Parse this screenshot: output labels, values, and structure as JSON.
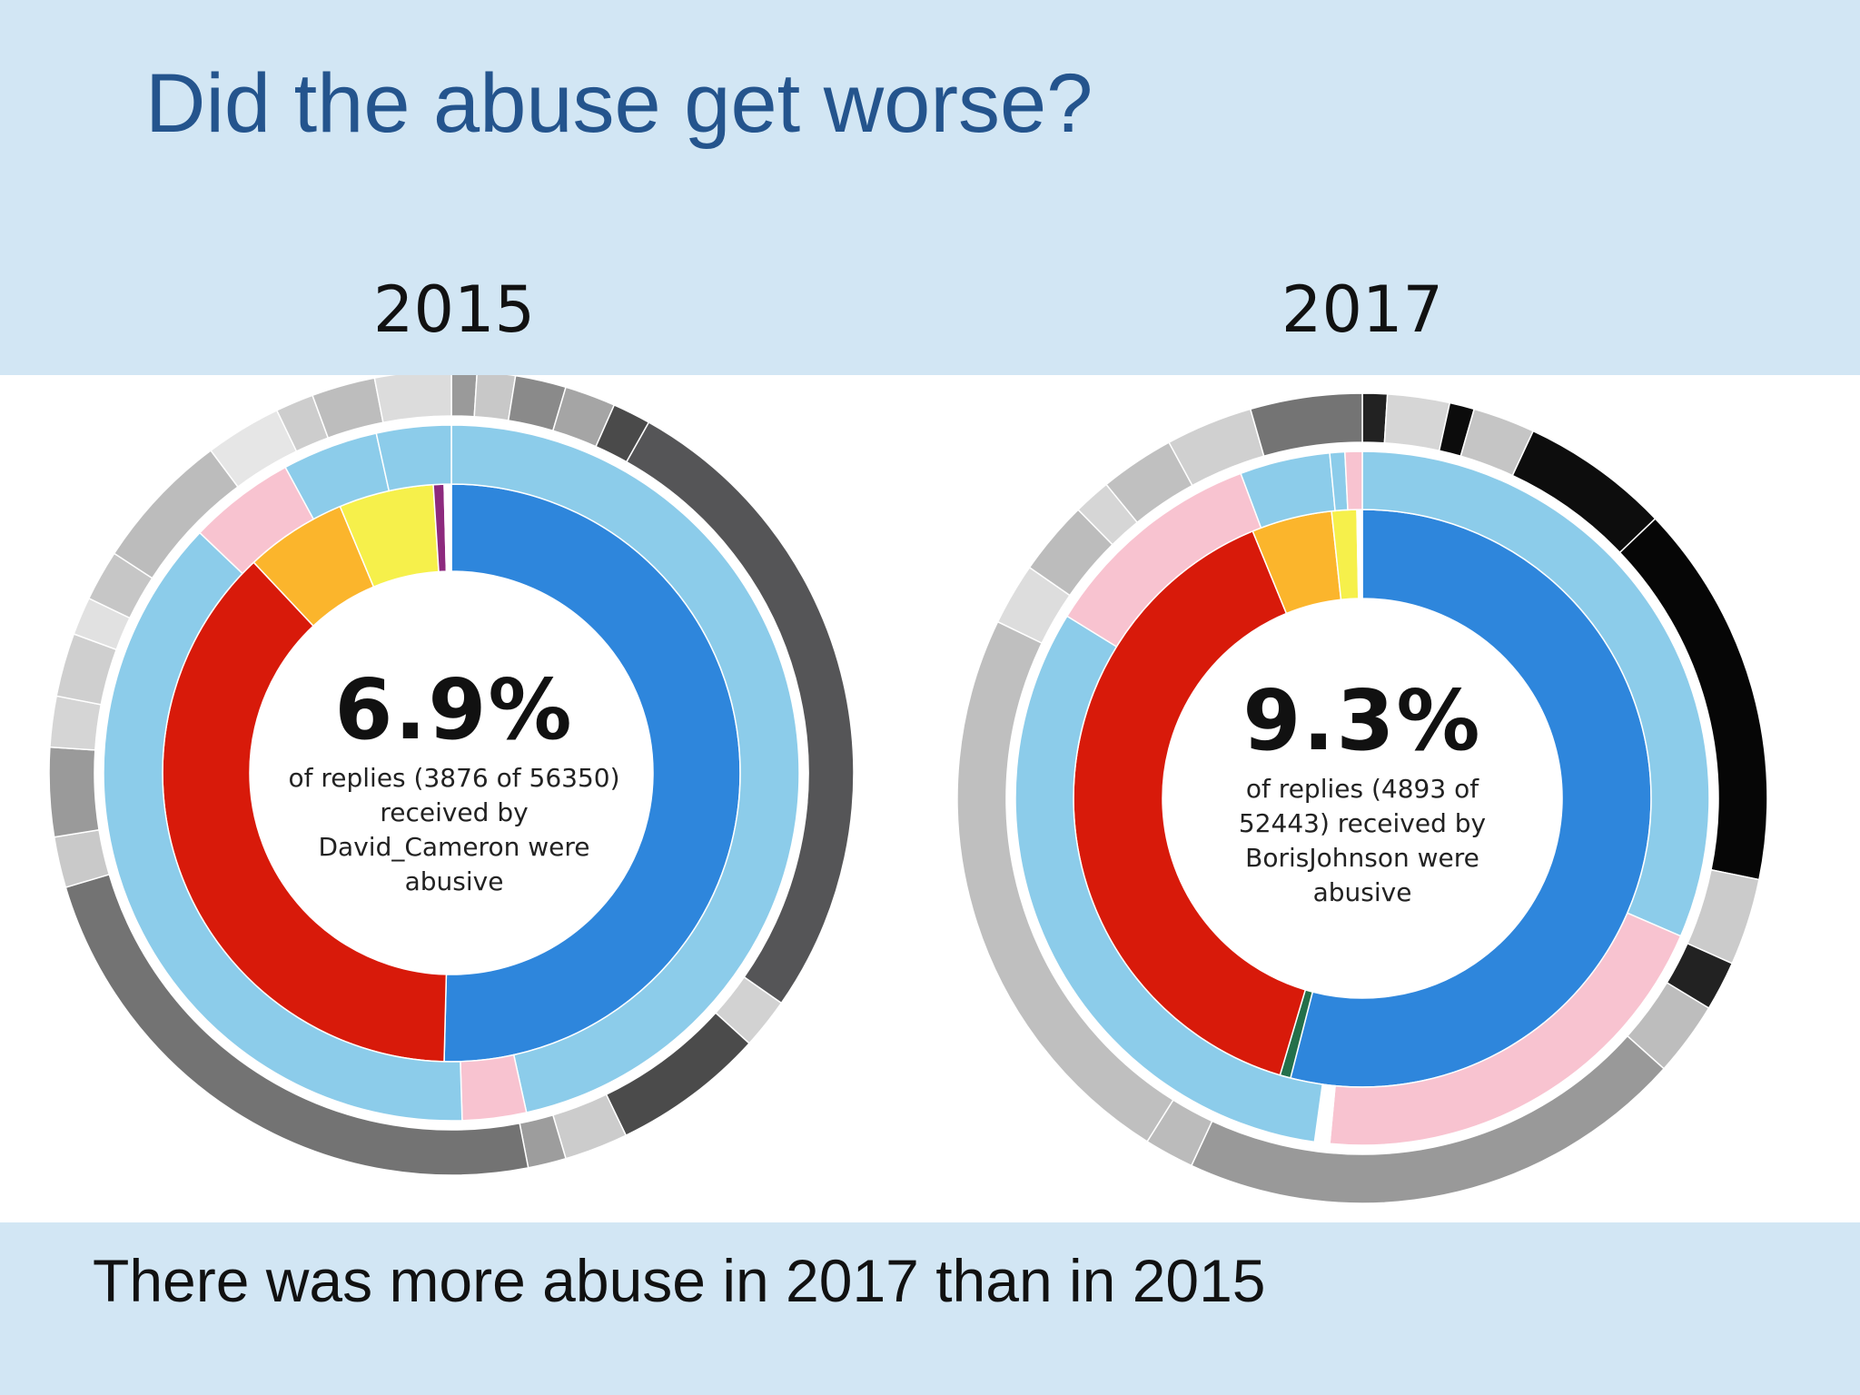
{
  "title": "Did the abuse get worse?",
  "footer": "There was more abuse in 2017 than in 2015",
  "colors": {
    "background": "#d2e6f4",
    "title": "#24548d",
    "conservative": "#2e86dc",
    "labour": "#d81a0a",
    "libdem": "#fbb52c",
    "snp": "#f6f04b",
    "other": "#8d2a7e",
    "light_blue": "#8cccea",
    "pink": "#f8c3d0",
    "green": "#24704a"
  },
  "chart_data": [
    {
      "type": "sunburst",
      "title": "2015",
      "center_value": "6.9%",
      "center_text": "of replies (3876 of 56350) received by David_Cameron were abusive",
      "replies_abusive": 3876,
      "replies_total": 56350,
      "abusive_percent": 6.9,
      "inner_ring": [
        {
          "value": 50.4,
          "color": "#2e86dc"
        },
        {
          "value": 37.6,
          "color": "#d81a0a"
        },
        {
          "value": 5.7,
          "color": "#fbb52c"
        },
        {
          "value": 5.3,
          "color": "#f6f04b"
        },
        {
          "value": 0.6,
          "color": "#8d2a7e"
        },
        {
          "value": 0.4,
          "color": "#ffffff"
        }
      ],
      "middle_ring": [
        {
          "value": 47.0,
          "color": "#8cccea"
        },
        {
          "value": 3.0,
          "color": "#f8c3d0"
        },
        {
          "value": 38.0,
          "color": "#8cccea"
        },
        {
          "value": 5.0,
          "color": "#f8c3d0"
        },
        {
          "value": 4.5,
          "color": "#8cccea"
        },
        {
          "value": 3.5,
          "color": "#8cccea"
        }
      ],
      "outer_ring": [
        {
          "value": 1.0,
          "color": "#9a9a9a"
        },
        {
          "value": 1.5,
          "color": "#c8c8c8"
        },
        {
          "value": 2.0,
          "color": "#8a8a8a"
        },
        {
          "value": 2.0,
          "color": "#a5a5a5"
        },
        {
          "value": 1.5,
          "color": "#4a4a4a"
        },
        {
          "value": 26.0,
          "color": "#555557"
        },
        {
          "value": 2.0,
          "color": "#d2d2d2"
        },
        {
          "value": 6.0,
          "color": "#4b4b4b"
        },
        {
          "value": 2.5,
          "color": "#cccccc"
        },
        {
          "value": 1.5,
          "color": "#9d9d9d"
        },
        {
          "value": 23.0,
          "color": "#737373"
        },
        {
          "value": 2.0,
          "color": "#c9c9c9"
        },
        {
          "value": 3.5,
          "color": "#9a9a9a"
        },
        {
          "value": 2.0,
          "color": "#d5d5d5"
        },
        {
          "value": 2.5,
          "color": "#cfcfcf"
        },
        {
          "value": 1.5,
          "color": "#e1e1e1"
        },
        {
          "value": 2.0,
          "color": "#c6c6c6"
        },
        {
          "value": 5.5,
          "color": "#bcbcbc"
        },
        {
          "value": 3.0,
          "color": "#e6e6e6"
        },
        {
          "value": 1.5,
          "color": "#cdcdcd"
        },
        {
          "value": 2.5,
          "color": "#bdbdbd"
        },
        {
          "value": 3.0,
          "color": "#dcdcdc"
        }
      ]
    },
    {
      "type": "sunburst",
      "title": "2017",
      "center_value": "9.3%",
      "center_text": "of replies (4893 of 52443) received by BorisJohnson were abusive",
      "replies_abusive": 4893,
      "replies_total": 52443,
      "abusive_percent": 9.3,
      "inner_ring": [
        {
          "value": 54.0,
          "color": "#2e86dc"
        },
        {
          "value": 0.6,
          "color": "#24704a"
        },
        {
          "value": 39.2,
          "color": "#d81a0a"
        },
        {
          "value": 4.5,
          "color": "#fbb52c"
        },
        {
          "value": 1.4,
          "color": "#f6f04b"
        },
        {
          "value": 0.3,
          "color": "#ffffff"
        }
      ],
      "middle_ring": [
        {
          "value": 31.5,
          "color": "#8cccea"
        },
        {
          "value": 20.0,
          "color": "#f8c3d0"
        },
        {
          "value": 0.7,
          "color": "#ffffff"
        },
        {
          "value": 31.6,
          "color": "#8cccea"
        },
        {
          "value": 10.5,
          "color": "#f8c3d0"
        },
        {
          "value": 4.2,
          "color": "#8cccea"
        },
        {
          "value": 0.7,
          "color": "#8cccea"
        },
        {
          "value": 0.8,
          "color": "#f8c3d0"
        }
      ],
      "outer_ring": [
        {
          "value": 1.0,
          "color": "#222222"
        },
        {
          "value": 2.5,
          "color": "#d6d6d6"
        },
        {
          "value": 1.0,
          "color": "#0c0c0c"
        },
        {
          "value": 2.5,
          "color": "#c5c5c5"
        },
        {
          "value": 6.0,
          "color": "#0d0d0d"
        },
        {
          "value": 15.5,
          "color": "#060606"
        },
        {
          "value": 3.5,
          "color": "#cbcbcb"
        },
        {
          "value": 2.0,
          "color": "#222222"
        },
        {
          "value": 3.0,
          "color": "#bdbdbd"
        },
        {
          "value": 20.5,
          "color": "#999999"
        },
        {
          "value": 2.0,
          "color": "#bbbbbb"
        },
        {
          "value": 23.5,
          "color": "#bfbfbf"
        },
        {
          "value": 2.5,
          "color": "#dddddd"
        },
        {
          "value": 3.0,
          "color": "#bcbcbc"
        },
        {
          "value": 1.5,
          "color": "#d6d6d6"
        },
        {
          "value": 3.0,
          "color": "#c0c0c0"
        },
        {
          "value": 3.5,
          "color": "#d0d0d0"
        },
        {
          "value": 4.5,
          "color": "#747474"
        }
      ]
    }
  ]
}
